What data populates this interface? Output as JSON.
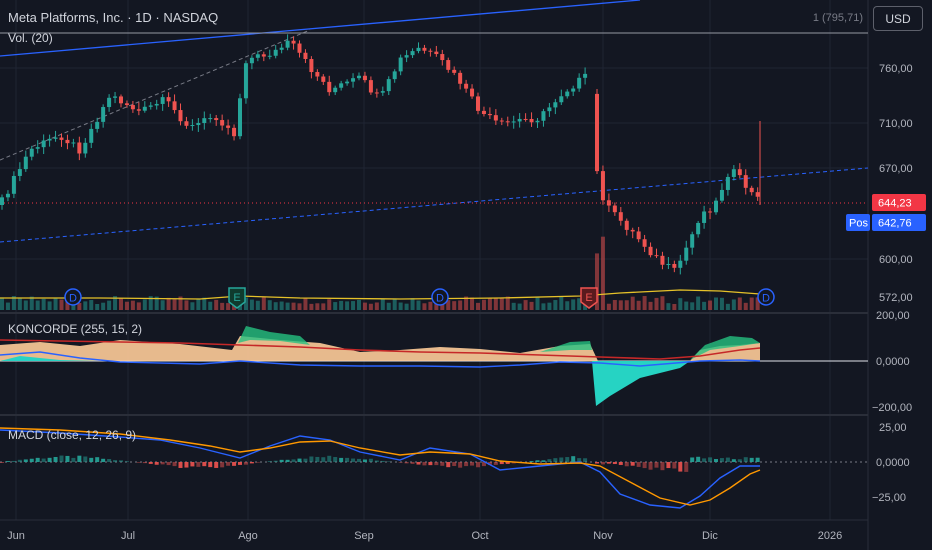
{
  "header": {
    "title": "Meta Platforms, Inc. · 1D · NASDAQ",
    "volume_label": "Vol. (20)",
    "top_right_value": "1 (795,71)"
  },
  "currency_button": "USD",
  "price_axis": {
    "ticks": [
      "760,00",
      "710,00",
      "670,00",
      "600,00",
      "572,00"
    ],
    "last_price": "644,23",
    "pos_label": "Pos",
    "pos_price": "642,76"
  },
  "koncorde": {
    "label": "KONCORDE (255, 15, 2)",
    "ticks": [
      "200,00",
      "0,0000",
      "−200,00"
    ]
  },
  "macd": {
    "label": "MACD (close, 12, 26, 9)",
    "ticks": [
      "25,00",
      "0,0000",
      "−25,00"
    ]
  },
  "time_axis": [
    "Jun",
    "Jul",
    "Ago",
    "Sep",
    "Oct",
    "Nov",
    "Dic",
    "2026"
  ],
  "event_markers": [
    "D",
    "E",
    "D",
    "E",
    "D"
  ],
  "colors": {
    "bg": "#131722",
    "up": "#26a69a",
    "down": "#ef5350",
    "price_line": "#f23645",
    "pos": "#2962ff",
    "trend": "#2962ff",
    "ma_vol": "#e6c229",
    "kon_fill": "#ffcc99",
    "kon_green": "#26c281",
    "kon_cyan": "#26d3c3",
    "kon_red": "#c62828",
    "macd_line": "#2962ff",
    "signal_line": "#ff9800"
  }
}
